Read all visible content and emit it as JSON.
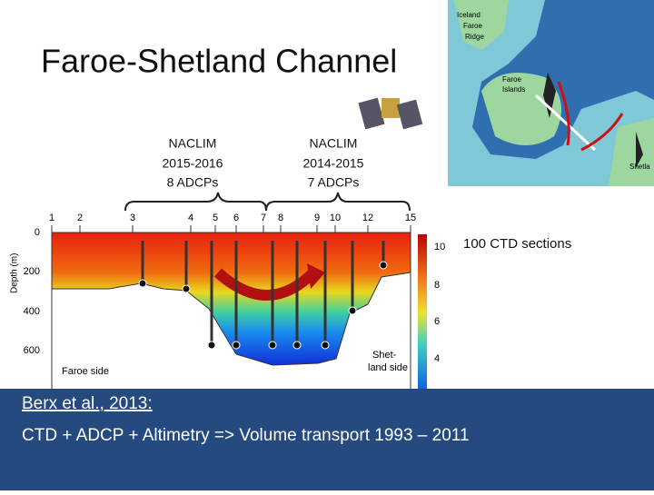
{
  "title": "Faroe-Shetland Channel",
  "moorings": [
    {
      "lines": [
        "NACLIM",
        "2015-2016",
        "8 ADCPs"
      ]
    },
    {
      "lines": [
        "NACLIM",
        "2014-2015",
        "7 ADCPs"
      ]
    }
  ],
  "section": {
    "stations": [
      "1",
      "2",
      "3",
      "4",
      "5",
      "6",
      "7",
      "8",
      "9",
      "10",
      "12",
      "15"
    ],
    "depth_ticks": [
      "0",
      "200",
      "400",
      "600"
    ],
    "depth_label": "Depth (m)",
    "colorbar_ticks": [
      "10",
      "8",
      "6",
      "4"
    ],
    "left_label": "Faroe side",
    "right_label": [
      "Shet-",
      "land side"
    ]
  },
  "ctd_label": "100 CTD sections",
  "map": {
    "labels": [
      "Iceland",
      "Faroe",
      "Ridge",
      "Faroe",
      "Islands",
      "Shetla"
    ]
  },
  "footer": {
    "citation": "Berx et al., 2013:",
    "summary": "CTD + ADCP + Altimetry => Volume transport 1993 – 2011"
  }
}
